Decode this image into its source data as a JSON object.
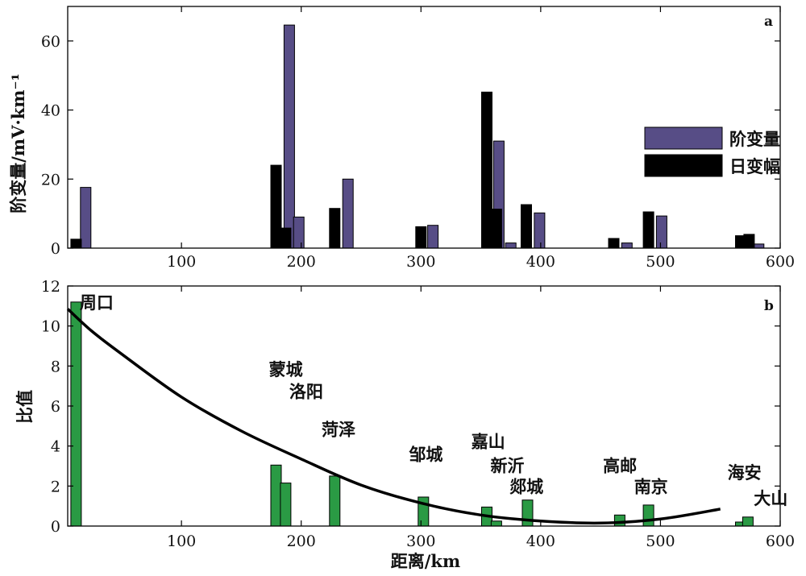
{
  "chart_data": [
    {
      "type": "bar",
      "panel": "a",
      "ylabel": "阶变量/mV·km⁻¹",
      "xlim": [
        5,
        600
      ],
      "ylim": [
        0,
        70
      ],
      "xticks": [
        100,
        200,
        300,
        400,
        500,
        600
      ],
      "yticks": [
        0,
        20,
        40,
        60
      ],
      "legend_position": "right",
      "series": [
        {
          "name": "阶变量",
          "color": "#574d86",
          "points": [
            [
              20,
              17.6
            ],
            [
              190,
              64.6
            ],
            [
              198,
              9.0
            ],
            [
              239,
              20.0
            ],
            [
              310,
              6.6
            ],
            [
              365,
              31.0
            ],
            [
              375,
              1.5
            ],
            [
              399,
              10.2
            ],
            [
              472,
              1.5
            ],
            [
              501,
              9.3
            ],
            [
              582,
              1.2
            ]
          ]
        },
        {
          "name": "日变幅",
          "color": "#000000",
          "points": [
            [
              12,
              2.6
            ],
            [
              179,
              24.0
            ],
            [
              187,
              5.8
            ],
            [
              228,
              11.5
            ],
            [
              300,
              6.2
            ],
            [
              355,
              45.2
            ],
            [
              363,
              11.3
            ],
            [
              388,
              12.6
            ],
            [
              461,
              2.8
            ],
            [
              490,
              10.5
            ],
            [
              567,
              3.6
            ],
            [
              574,
              4.0
            ]
          ]
        }
      ]
    },
    {
      "type": "bar",
      "panel": "b",
      "xlabel": "距离/km",
      "ylabel": "比值",
      "xlim": [
        5,
        600
      ],
      "ylim": [
        0,
        12
      ],
      "xticks": [
        100,
        200,
        300,
        400,
        500,
        600
      ],
      "yticks": [
        0,
        2,
        4,
        6,
        8,
        10,
        12
      ],
      "bar_color": "#2a9a44",
      "bars": [
        [
          12,
          11.2
        ],
        [
          179,
          3.05
        ],
        [
          187,
          2.15
        ],
        [
          228,
          2.5
        ],
        [
          302,
          1.45
        ],
        [
          355,
          0.95
        ],
        [
          363,
          0.25
        ],
        [
          389,
          1.3
        ],
        [
          466,
          0.55
        ],
        [
          490,
          1.05
        ],
        [
          567,
          0.2
        ],
        [
          573,
          0.45
        ]
      ],
      "fit_curve": {
        "color": "#000000",
        "points": [
          [
            5,
            10.85
          ],
          [
            25,
            9.75
          ],
          [
            50,
            8.6
          ],
          [
            100,
            6.45
          ],
          [
            150,
            4.75
          ],
          [
            200,
            3.35
          ],
          [
            250,
            2.05
          ],
          [
            300,
            1.15
          ],
          [
            350,
            0.55
          ],
          [
            400,
            0.25
          ],
          [
            450,
            0.15
          ],
          [
            500,
            0.35
          ],
          [
            550,
            0.85
          ]
        ]
      },
      "labels": [
        {
          "text": "周口",
          "x": 15,
          "y": 11.2
        },
        {
          "text": "蒙城",
          "x": 173,
          "y": 7.85
        },
        {
          "text": "洛阳",
          "x": 190,
          "y": 6.75
        },
        {
          "text": "菏泽",
          "x": 217,
          "y": 4.85
        },
        {
          "text": "邹城",
          "x": 290,
          "y": 3.6
        },
        {
          "text": "嘉山",
          "x": 342,
          "y": 4.25
        },
        {
          "text": "新沂",
          "x": 358,
          "y": 3.05
        },
        {
          "text": "郯城",
          "x": 374,
          "y": 2.0
        },
        {
          "text": "高邮",
          "x": 452,
          "y": 3.05
        },
        {
          "text": "南京",
          "x": 478,
          "y": 2.0
        },
        {
          "text": "海安",
          "x": 556,
          "y": 2.7
        },
        {
          "text": "大山",
          "x": 578,
          "y": 1.4
        }
      ]
    }
  ]
}
